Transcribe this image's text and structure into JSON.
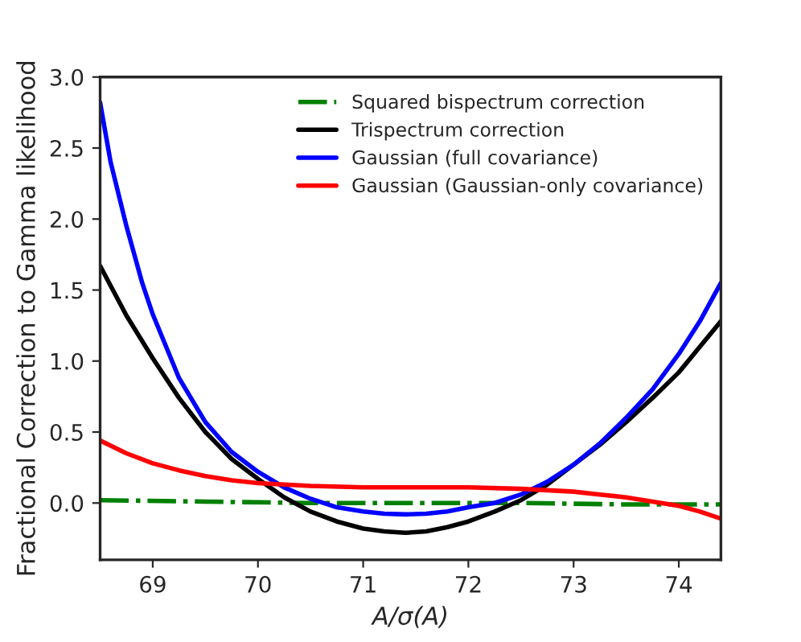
{
  "chart_data": {
    "type": "line",
    "xlabel": "A/σ(A)",
    "ylabel": "Fractional Correction to Gamma likelihood",
    "xlim": [
      68.5,
      74.4
    ],
    "ylim": [
      -0.4,
      3.0
    ],
    "xticks": [
      69,
      70,
      71,
      72,
      73,
      74
    ],
    "yticks": [
      {
        "value": 0.0,
        "label": "0.0"
      },
      0.5,
      {
        "value": 1.0,
        "label": "1.0"
      },
      1.5,
      {
        "value": 2.0,
        "label": "2.0"
      },
      2.5,
      {
        "value": 3.0,
        "label": "3.0"
      }
    ],
    "grid": false,
    "legend": "top right",
    "series": [
      {
        "name": "Squared bispectrum correction",
        "color": "#008000",
        "line_style": "dashdot",
        "x": [
          68.5,
          69.5,
          70.5,
          71.5,
          72.5,
          73.5,
          74.4
        ],
        "values": [
          0.02,
          0.01,
          0.0,
          0.0,
          0.0,
          -0.01,
          -0.01
        ]
      },
      {
        "name": "Trispectrum correction",
        "color": "#000000",
        "x": [
          68.5,
          68.75,
          69,
          69.25,
          69.5,
          69.75,
          70,
          70.25,
          70.5,
          70.75,
          71,
          71.2,
          71.4,
          71.6,
          71.8,
          72,
          72.25,
          72.5,
          72.75,
          73,
          73.25,
          73.5,
          73.75,
          74,
          74.2,
          74.4
        ],
        "values": [
          1.67,
          1.32,
          1.02,
          0.74,
          0.5,
          0.31,
          0.17,
          0.04,
          -0.06,
          -0.13,
          -0.18,
          -0.2,
          -0.21,
          -0.2,
          -0.17,
          -0.13,
          -0.06,
          0.02,
          0.13,
          0.27,
          0.41,
          0.57,
          0.74,
          0.92,
          1.1,
          1.28
        ]
      },
      {
        "name": "Gaussian (full covariance)",
        "color": "#0000ff",
        "x": [
          68.5,
          68.6,
          68.75,
          68.9,
          69,
          69.25,
          69.5,
          69.75,
          70,
          70.25,
          70.5,
          70.75,
          71,
          71.2,
          71.4,
          71.6,
          71.8,
          72,
          72.25,
          72.5,
          72.75,
          73,
          73.25,
          73.5,
          73.75,
          74,
          74.2,
          74.4
        ],
        "values": [
          2.82,
          2.4,
          1.95,
          1.55,
          1.33,
          0.88,
          0.57,
          0.36,
          0.22,
          0.11,
          0.03,
          -0.03,
          -0.06,
          -0.075,
          -0.08,
          -0.075,
          -0.06,
          -0.03,
          0.0,
          0.06,
          0.15,
          0.27,
          0.42,
          0.6,
          0.8,
          1.05,
          1.28,
          1.55
        ]
      },
      {
        "name": "Gaussian (Gaussian-only covariance)",
        "color": "#ff0000",
        "x": [
          68.5,
          68.75,
          69,
          69.25,
          69.5,
          69.75,
          70,
          70.5,
          71,
          71.5,
          72,
          72.5,
          73,
          73.25,
          73.5,
          73.75,
          74,
          74.2,
          74.4
        ],
        "values": [
          0.44,
          0.35,
          0.28,
          0.23,
          0.19,
          0.16,
          0.14,
          0.12,
          0.11,
          0.11,
          0.11,
          0.1,
          0.08,
          0.06,
          0.04,
          0.01,
          -0.02,
          -0.06,
          -0.11
        ]
      }
    ]
  }
}
